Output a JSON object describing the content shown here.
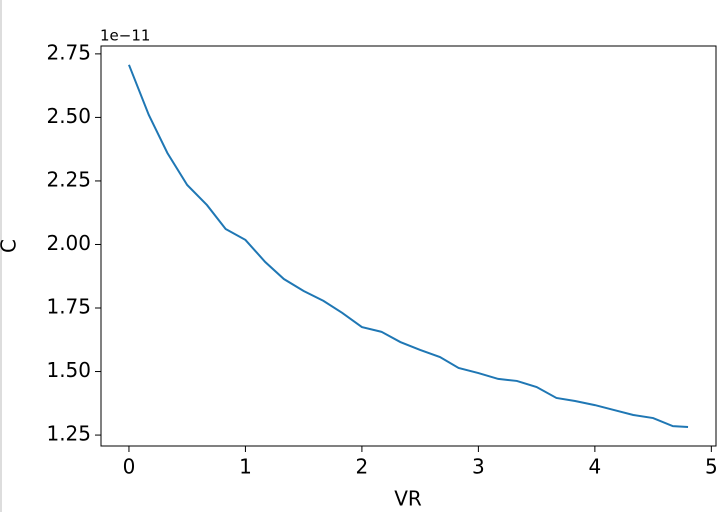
{
  "chart_data": {
    "type": "line",
    "xlabel": "VR",
    "ylabel": "C",
    "offset_text": "1e−11",
    "x": [
      0,
      0.17,
      0.33,
      0.5,
      0.67,
      0.83,
      1.0,
      1.17,
      1.33,
      1.5,
      1.67,
      1.83,
      2.0,
      2.17,
      2.33,
      2.5,
      2.67,
      2.83,
      3.0,
      3.17,
      3.33,
      3.5,
      3.67,
      3.83,
      4.0,
      4.17,
      4.33,
      4.5,
      4.67,
      4.8
    ],
    "series": [
      {
        "name": "C",
        "color": "#1f77b4",
        "values": [
          2.707,
          2.51,
          2.36,
          2.234,
          2.155,
          2.061,
          2.018,
          1.931,
          1.864,
          1.817,
          1.778,
          1.731,
          1.675,
          1.656,
          1.616,
          1.585,
          1.557,
          1.514,
          1.494,
          1.471,
          1.463,
          1.439,
          1.396,
          1.384,
          1.368,
          1.348,
          1.329,
          1.317,
          1.285,
          1.282
        ]
      }
    ],
    "xlim": [
      -0.24,
      5.04
    ],
    "ylim": [
      1.207,
      2.781
    ],
    "xticks": [
      0,
      1,
      2,
      3,
      4,
      5
    ],
    "yticks": [
      1.25,
      1.5,
      1.75,
      2.0,
      2.25,
      2.5,
      2.75
    ]
  }
}
